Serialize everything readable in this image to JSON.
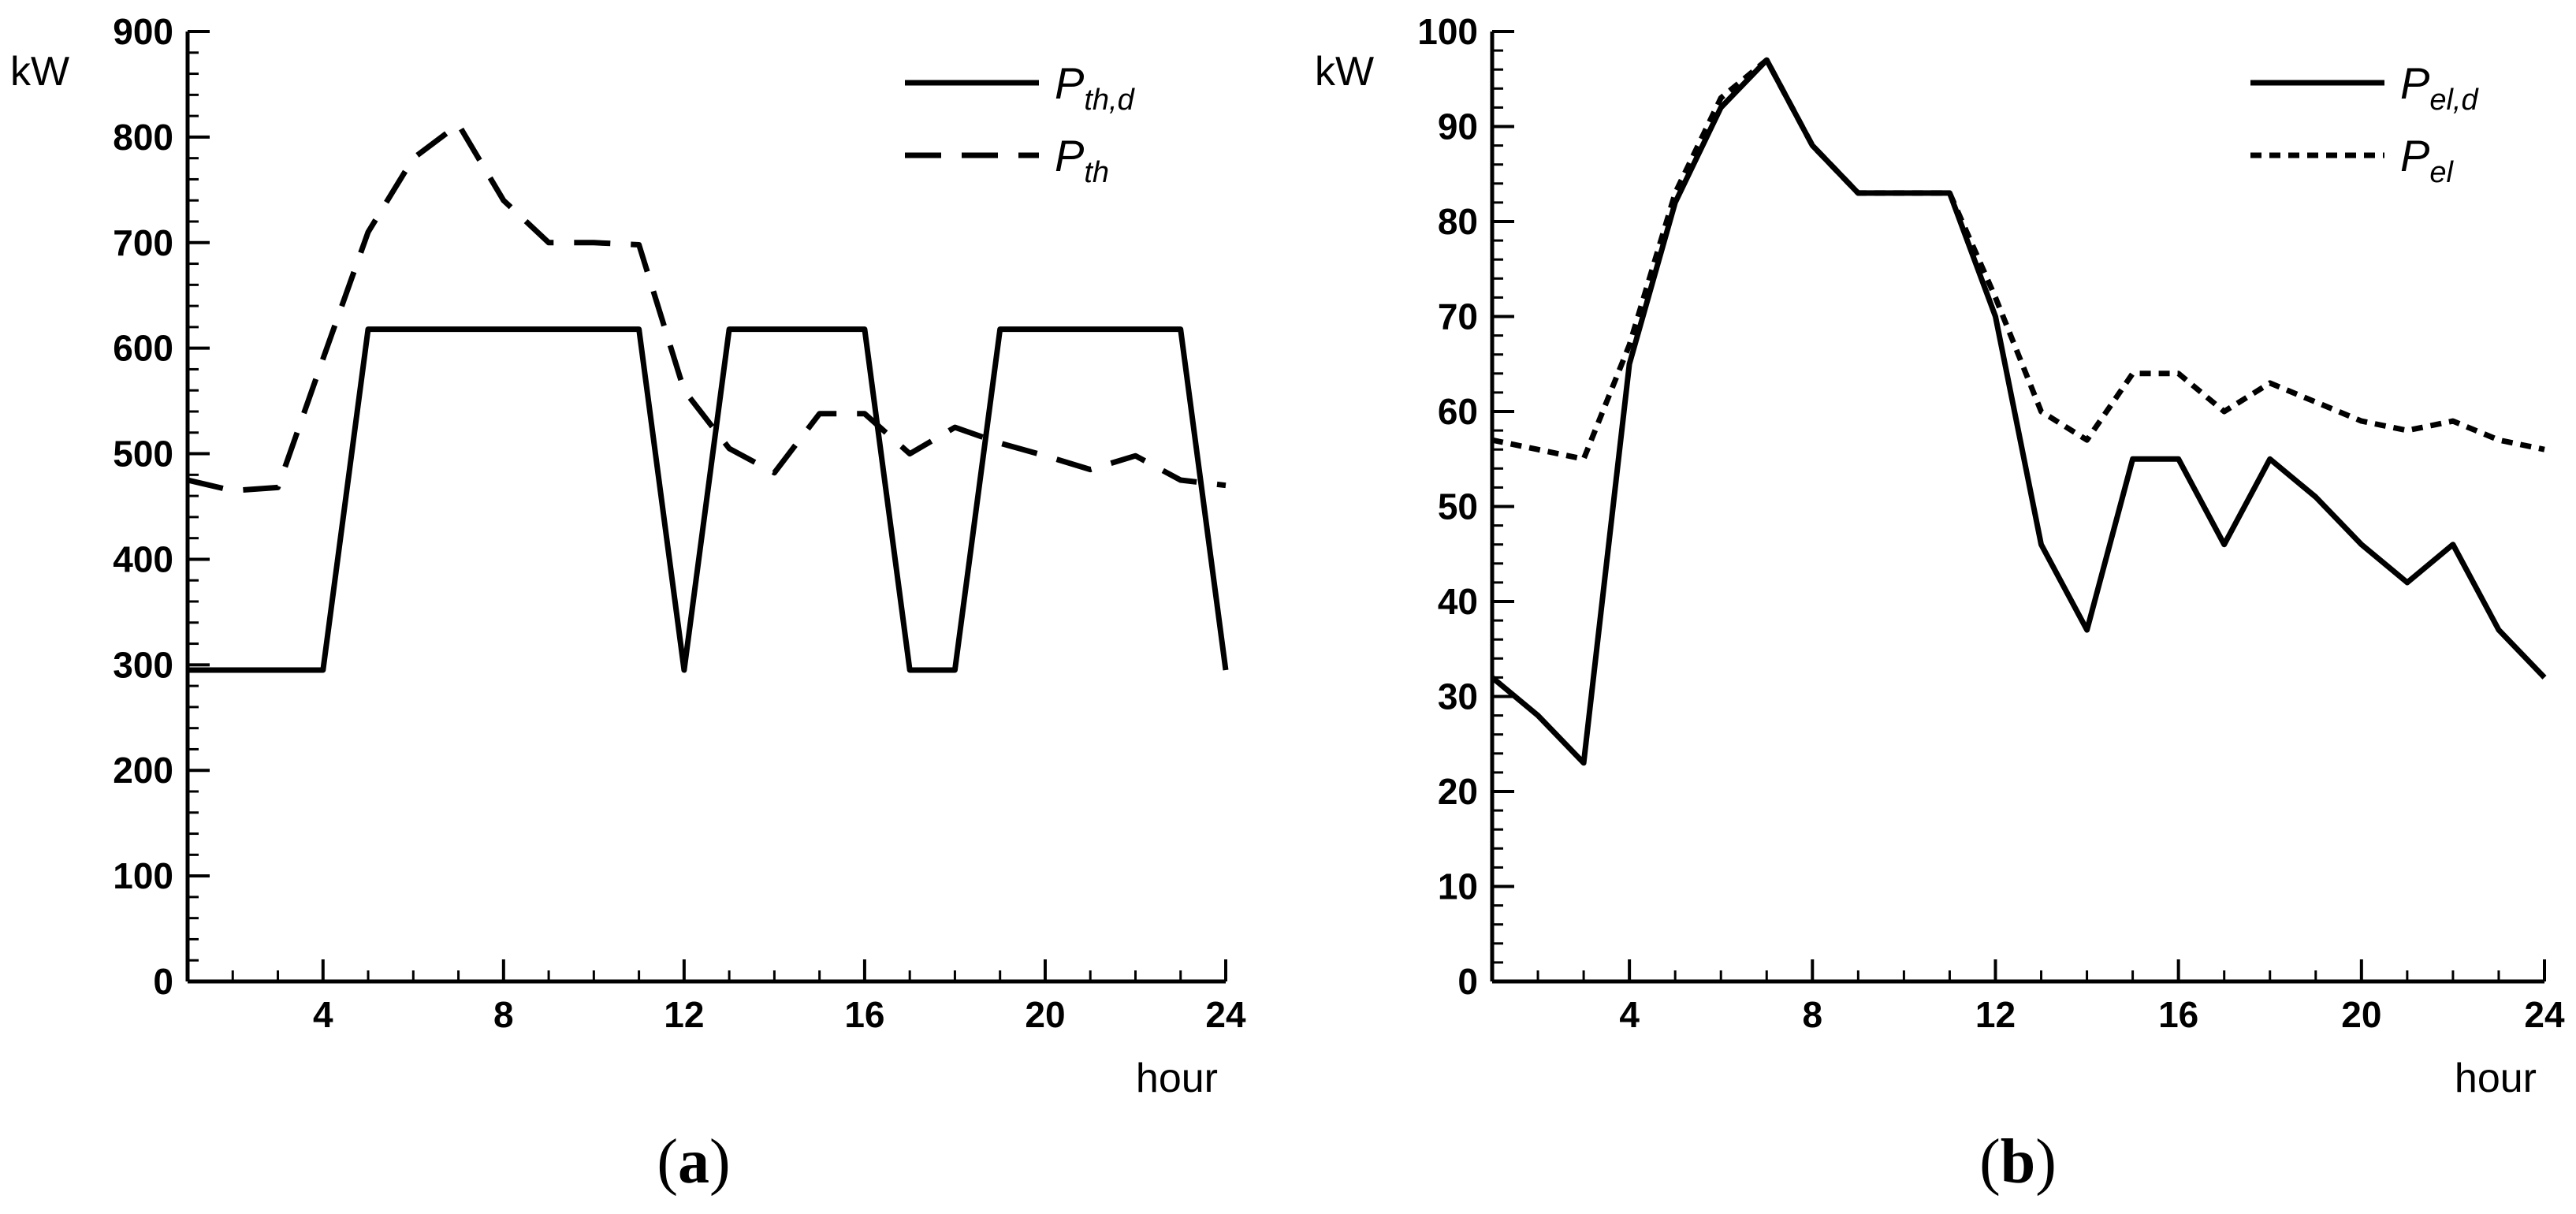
{
  "chart_data": [
    {
      "type": "line",
      "panel_label": "a",
      "ylabel": "kW",
      "xlabel": "hour",
      "xlim": [
        1,
        24
      ],
      "ylim": [
        0,
        900
      ],
      "x_ticks": [
        4,
        8,
        12,
        16,
        20,
        24
      ],
      "y_ticks": [
        0,
        100,
        200,
        300,
        400,
        500,
        600,
        700,
        800,
        900
      ],
      "legend_position": "top-right",
      "series": [
        {
          "name": "P_th,d",
          "label_main": "P",
          "label_sub": "th,d",
          "style": "solid",
          "x": [
            1,
            2,
            3,
            4,
            5,
            6,
            7,
            8,
            9,
            10,
            11,
            12,
            13,
            14,
            15,
            16,
            17,
            18,
            19,
            20,
            21,
            22,
            23,
            24
          ],
          "values": [
            295,
            295,
            295,
            295,
            618,
            618,
            618,
            618,
            618,
            618,
            618,
            295,
            618,
            618,
            618,
            618,
            295,
            295,
            618,
            618,
            618,
            618,
            618,
            295
          ]
        },
        {
          "name": "P_th",
          "label_main": "P",
          "label_sub": "th",
          "style": "dashed",
          "x": [
            1,
            2,
            3,
            4,
            5,
            6,
            7,
            8,
            9,
            10,
            11,
            12,
            13,
            14,
            15,
            16,
            17,
            18,
            19,
            20,
            21,
            22,
            23,
            24
          ],
          "values": [
            475,
            465,
            468,
            590,
            710,
            780,
            812,
            740,
            700,
            700,
            698,
            560,
            505,
            482,
            538,
            538,
            500,
            525,
            510,
            498,
            485,
            498,
            475,
            470
          ]
        }
      ]
    },
    {
      "type": "line",
      "panel_label": "b",
      "ylabel": "kW",
      "xlabel": "hour",
      "xlim": [
        1,
        24
      ],
      "ylim": [
        0,
        100
      ],
      "x_ticks": [
        4,
        8,
        12,
        16,
        20,
        24
      ],
      "y_ticks": [
        0,
        10,
        20,
        30,
        40,
        50,
        60,
        70,
        80,
        90,
        100
      ],
      "legend_position": "top-right",
      "series": [
        {
          "name": "P_el,d",
          "label_main": "P",
          "label_sub": "el,d",
          "style": "solid",
          "x": [
            1,
            2,
            3,
            4,
            5,
            6,
            7,
            8,
            9,
            10,
            11,
            12,
            13,
            14,
            15,
            16,
            17,
            18,
            19,
            20,
            21,
            22,
            23,
            24
          ],
          "values": [
            32,
            28,
            23,
            65,
            82,
            92,
            97,
            88,
            83,
            83,
            83,
            70,
            46,
            37,
            55,
            55,
            46,
            55,
            51,
            46,
            42,
            46,
            37,
            32
          ]
        },
        {
          "name": "P_el",
          "label_main": "P",
          "label_sub": "el",
          "style": "dotted",
          "x": [
            1,
            2,
            3,
            4,
            5,
            6,
            7,
            8,
            9,
            10,
            11,
            12,
            13,
            14,
            15,
            16,
            17,
            18,
            19,
            20,
            21,
            22,
            23,
            24
          ],
          "values": [
            57,
            56,
            55,
            67,
            83,
            93,
            97,
            88,
            83,
            83,
            83,
            72,
            60,
            57,
            64,
            64,
            60,
            63,
            61,
            59,
            58,
            59,
            57,
            56
          ]
        }
      ]
    }
  ]
}
